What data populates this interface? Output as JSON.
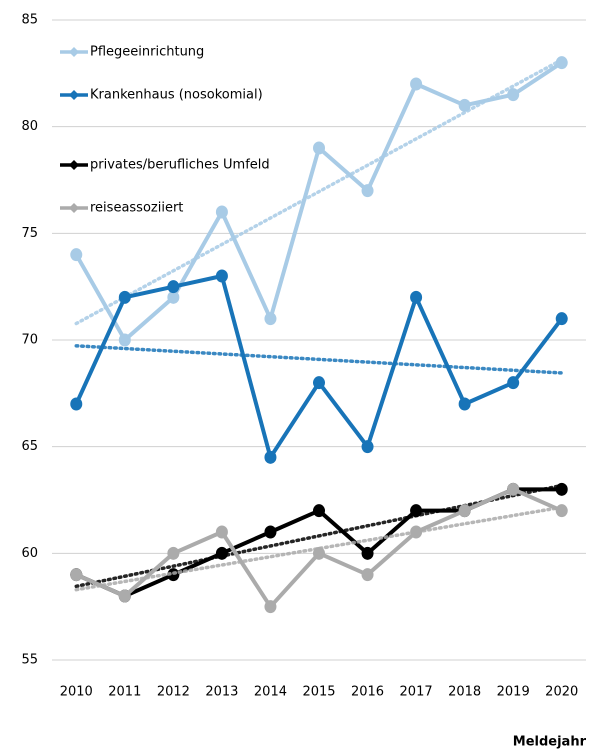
{
  "chart_data": {
    "type": "line",
    "x_label": "Meldejahr",
    "categories": [
      "2010",
      "2011",
      "2012",
      "2013",
      "2014",
      "2015",
      "2016",
      "2017",
      "2018",
      "2019",
      "2020"
    ],
    "series": [
      {
        "name": "Pflegeeinrichtung",
        "color": "#a8cbe6",
        "values": [
          74,
          70,
          72,
          76,
          71,
          79,
          77,
          82,
          81,
          81.5,
          83
        ]
      },
      {
        "name": "Krankenhaus (nosokomial)",
        "color": "#1874b8",
        "values": [
          67,
          72,
          72.5,
          73,
          64.5,
          68,
          65,
          72,
          67,
          68,
          71
        ]
      },
      {
        "name": "privates/berufliches Umfeld",
        "color": "#000000",
        "values": [
          59,
          58,
          59,
          60,
          61,
          62,
          60,
          62,
          62,
          63,
          63
        ]
      },
      {
        "name": "reiseassoziiert",
        "color": "#ababab",
        "values": [
          59,
          58,
          60,
          61,
          57.5,
          60,
          59,
          61,
          62,
          63,
          62
        ]
      }
    ],
    "ylim": [
      55,
      85
    ],
    "yticks": [
      55,
      60,
      65,
      70,
      75,
      80,
      85
    ],
    "grid": true,
    "trendline": true,
    "legend": "top-left"
  }
}
